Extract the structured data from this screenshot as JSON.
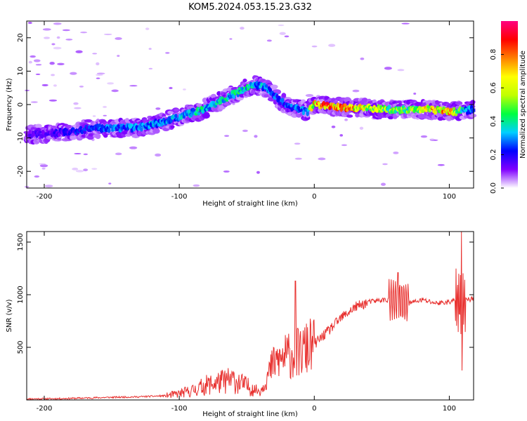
{
  "title": "KOM5.2024.053.15.23.G32",
  "chart_data": [
    {
      "type": "heatmap",
      "xlabel": "Height of straight line (km)",
      "ylabel": "Frequency (Hz)",
      "xlim": [
        -213,
        118
      ],
      "ylim": [
        -25,
        25
      ],
      "xticks": [
        -200,
        -100,
        0,
        100
      ],
      "yticks": [
        -20,
        -10,
        0,
        10,
        20
      ],
      "colorbar": {
        "label": "Normalized spectral amplitude",
        "range": [
          0,
          1
        ],
        "ticks": [
          "0.0",
          "0.2",
          "0.4",
          "0.6",
          "0.8"
        ],
        "colormap": [
          "#ffffff",
          "#8000ff",
          "#0000ff",
          "#00d0ff",
          "#00ff40",
          "#c0ff00",
          "#ffff00",
          "#ff8000",
          "#ff0000",
          "#ff0080"
        ]
      },
      "ridge": {
        "x": [
          -213,
          -190,
          -160,
          -130,
          -110,
          -95,
          -85,
          -75,
          -65,
          -55,
          -45,
          -35,
          -25,
          -15,
          -5,
          0,
          10,
          25,
          40,
          55,
          70,
          85,
          100,
          110,
          118
        ],
        "y": [
          -9,
          -8.5,
          -7,
          -7,
          -5,
          -3,
          -2,
          0,
          2,
          4,
          6,
          5,
          1,
          -1,
          -2,
          0,
          -0.5,
          -1,
          -1,
          -1.5,
          -1.5,
          -1.5,
          -2,
          -2,
          -1.5
        ],
        "amplitude": [
          0.15,
          0.2,
          0.3,
          0.35,
          0.35,
          0.4,
          0.45,
          0.4,
          0.45,
          0.45,
          0.4,
          0.35,
          0.3,
          0.3,
          0.4,
          0.9,
          0.95,
          0.85,
          0.7,
          0.6,
          0.55,
          0.8,
          0.85,
          0.45,
          0.3
        ]
      }
    },
    {
      "type": "line",
      "xlabel": "Height of straight line (km)",
      "ylabel": "SNR (v/v)",
      "xlim": [
        -213,
        118
      ],
      "ylim": [
        0,
        1600
      ],
      "xticks": [
        -200,
        -100,
        0,
        100
      ],
      "yticks": [
        500,
        1000,
        1500
      ],
      "color": "#e8302e",
      "series": [
        {
          "x": [
            -213,
            -190,
            -170,
            -150,
            -130,
            -110,
            -100,
            -90,
            -80,
            -70,
            -60,
            -50,
            -40,
            -30,
            -20,
            -10,
            0,
            10,
            20,
            30,
            40,
            50,
            60,
            70,
            80,
            90,
            100,
            105,
            110,
            112,
            118
          ],
          "y": [
            10,
            12,
            18,
            25,
            30,
            40,
            60,
            90,
            140,
            170,
            190,
            130,
            80,
            350,
            420,
            450,
            530,
            650,
            780,
            880,
            930,
            950,
            950,
            920,
            950,
            920,
            930,
            950,
            900,
            950,
            960
          ]
        }
      ],
      "spikes": [
        {
          "x": -14,
          "y": 1130
        },
        {
          "x": 62,
          "y": 1210
        },
        {
          "x": 109,
          "y": 1600
        },
        {
          "x": 109.5,
          "y": 280
        }
      ]
    }
  ]
}
